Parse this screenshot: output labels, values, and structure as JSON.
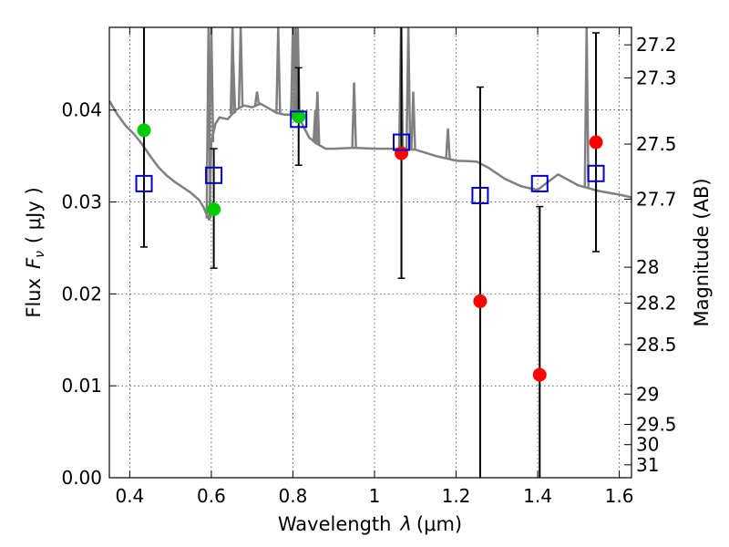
{
  "chart_data": {
    "type": "scatter",
    "title": "",
    "xlabel_text": "Wavelength",
    "xlabel_symbol": "λ",
    "xlabel_unit": "(μm)",
    "ylabel_text": "Flux",
    "ylabel_symbol": "F",
    "ylabel_subscript": "ν",
    "ylabel_unit": "( μJy )",
    "y2label": "Magnitude (AB)",
    "xlim": [
      0.35,
      1.63
    ],
    "ylim": [
      0.0,
      0.049
    ],
    "grid": true,
    "x_ticks": [
      {
        "value": 0.4,
        "label": "0.4"
      },
      {
        "value": 0.6,
        "label": "0.6"
      },
      {
        "value": 0.8,
        "label": "0.8"
      },
      {
        "value": 1.0,
        "label": "1"
      },
      {
        "value": 1.2,
        "label": "1.2"
      },
      {
        "value": 1.4,
        "label": "1.4"
      },
      {
        "value": 1.6,
        "label": "1.6"
      }
    ],
    "y_ticks": [
      {
        "value": 0.0,
        "label": "0.00"
      },
      {
        "value": 0.01,
        "label": "0.01"
      },
      {
        "value": 0.02,
        "label": "0.02"
      },
      {
        "value": 0.03,
        "label": "0.03"
      },
      {
        "value": 0.04,
        "label": "0.04"
      }
    ],
    "y2_ticks": [
      {
        "flux": 0.0471,
        "label": "27.2"
      },
      {
        "flux": 0.0435,
        "label": "27.3"
      },
      {
        "flux": 0.0363,
        "label": "27.5"
      },
      {
        "flux": 0.0303,
        "label": "27.7"
      },
      {
        "flux": 0.0229,
        "label": "28"
      },
      {
        "flux": 0.019,
        "label": "28.2"
      },
      {
        "flux": 0.0145,
        "label": "28.5"
      },
      {
        "flux": 0.0091,
        "label": "29"
      },
      {
        "flux": 0.0058,
        "label": "29.5"
      },
      {
        "flux": 0.0036,
        "label": "30"
      },
      {
        "flux": 0.0014,
        "label": "31"
      }
    ],
    "series": [
      {
        "kind": "line",
        "color": "#808080",
        "x": [
          0.35,
          0.37,
          0.39,
          0.41,
          0.43,
          0.45,
          0.47,
          0.49,
          0.51,
          0.53,
          0.55,
          0.57,
          0.58,
          0.59,
          0.595,
          0.6,
          0.61,
          0.62,
          0.64,
          0.66,
          0.68,
          0.7,
          0.72,
          0.74,
          0.76,
          0.78,
          0.8,
          0.82,
          0.84,
          0.86,
          0.88,
          0.9,
          0.95,
          1.0,
          1.05,
          1.1,
          1.15,
          1.2,
          1.25,
          1.28,
          1.32,
          1.36,
          1.4,
          1.42,
          1.45,
          1.5,
          1.55,
          1.6,
          1.63
        ],
        "y": [
          0.041,
          0.0395,
          0.0383,
          0.0374,
          0.0363,
          0.035,
          0.0338,
          0.0329,
          0.0322,
          0.0316,
          0.031,
          0.0302,
          0.0295,
          0.0285,
          0.028,
          0.0365,
          0.0385,
          0.0392,
          0.039,
          0.04,
          0.0405,
          0.0403,
          0.0407,
          0.0402,
          0.0397,
          0.0395,
          0.0395,
          0.0387,
          0.037,
          0.0363,
          0.0358,
          0.0358,
          0.0359,
          0.0358,
          0.0358,
          0.0357,
          0.035,
          0.0345,
          0.0344,
          0.0337,
          0.0325,
          0.0317,
          0.0313,
          0.032,
          0.033,
          0.0318,
          0.0312,
          0.0308,
          0.0305
        ]
      },
      {
        "kind": "line-spikes",
        "color": "#808080",
        "x": [
          0.593,
          0.6,
          0.652,
          0.654,
          0.672,
          0.712,
          0.764,
          0.8,
          0.806,
          0.812,
          0.855,
          0.86,
          0.95,
          1.065,
          1.083,
          1.095,
          1.18,
          1.52
        ],
        "y": [
          0.049,
          0.049,
          0.049,
          0.045,
          0.049,
          0.042,
          0.049,
          0.049,
          0.049,
          0.049,
          0.04,
          0.042,
          0.043,
          0.049,
          0.049,
          0.042,
          0.038,
          0.049
        ]
      },
      {
        "kind": "markers",
        "name": "",
        "marker": "circle",
        "color": "#00cc00",
        "x": [
          0.435,
          0.606,
          0.814
        ],
        "y": [
          0.0378,
          0.0292,
          0.0393
        ]
      },
      {
        "kind": "markers",
        "name": "",
        "marker": "circle",
        "color": "#ff0000",
        "x": [
          1.066,
          1.259,
          1.405,
          1.543
        ],
        "y": [
          0.0353,
          0.0192,
          0.0112,
          0.0365
        ]
      },
      {
        "kind": "markers",
        "name": "",
        "marker": "open-square",
        "color": "#0000cc",
        "x": [
          0.435,
          0.606,
          0.814,
          1.066,
          1.259,
          1.405,
          1.543
        ],
        "y": [
          0.032,
          0.0329,
          0.039,
          0.0365,
          0.0307,
          0.032,
          0.0331
        ]
      },
      {
        "kind": "errorbars",
        "color": "#000000",
        "x": [
          0.435,
          0.606,
          0.814,
          1.066,
          1.259,
          1.405,
          1.543
        ],
        "ylow": [
          0.0251,
          0.0228,
          0.034,
          0.0217,
          0.0,
          0.0,
          0.0246
        ],
        "yhigh": [
          0.049,
          0.0358,
          0.0446,
          0.049,
          0.0425,
          0.0295,
          0.0484
        ]
      }
    ]
  }
}
